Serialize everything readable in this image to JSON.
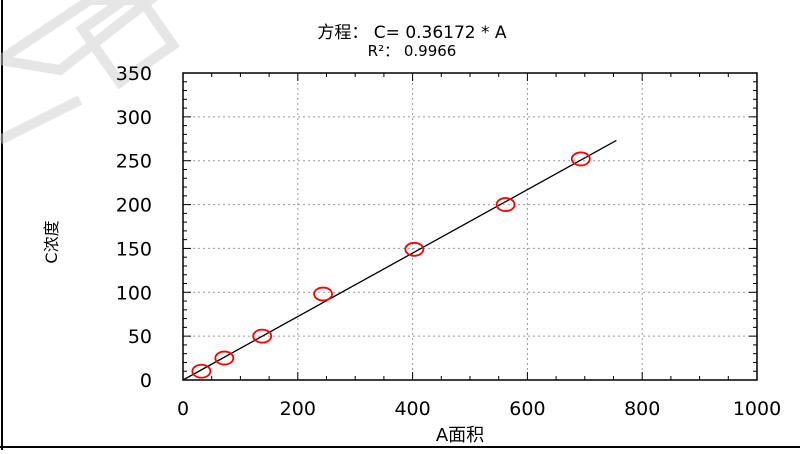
{
  "chart_data": {
    "type": "scatter",
    "title": "方程： C= 0.36172 * A",
    "subtitle": "R²： 0.9966",
    "xlabel": "A面积",
    "ylabel": "C浓度",
    "xlim": [
      0,
      1000
    ],
    "ylim": [
      0,
      350
    ],
    "xticks": [
      "0",
      "200",
      "400",
      "600",
      "800",
      "1000"
    ],
    "yticks": [
      "0",
      "50",
      "100",
      "150",
      "200",
      "250",
      "300",
      "350"
    ],
    "grid": true,
    "series": [
      {
        "points": [
          {
            "x": 32,
            "y": 10
          },
          {
            "x": 72,
            "y": 25
          },
          {
            "x": 138,
            "y": 50
          },
          {
            "x": 244,
            "y": 98
          },
          {
            "x": 403,
            "y": 149
          },
          {
            "x": 562,
            "y": 200
          },
          {
            "x": 693,
            "y": 252
          }
        ],
        "color": "#ff0000"
      }
    ],
    "fit_line": {
      "slope": 0.36172,
      "intercept": 0,
      "x_start": 0,
      "x_end": 755,
      "color": "#000000"
    }
  },
  "watermark": {
    "text": "国",
    "color": "#d0d0d0"
  }
}
